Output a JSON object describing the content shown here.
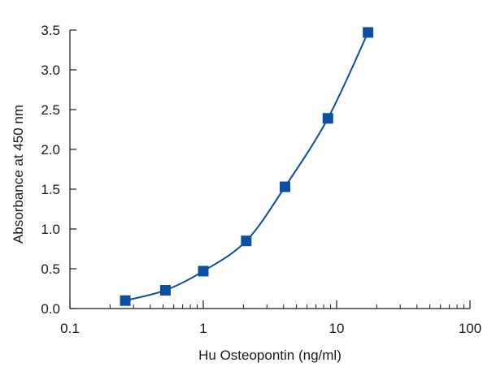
{
  "chart_data": {
    "type": "scatter",
    "title": "",
    "xlabel": "Hu Osteopontin (ng/ml)",
    "ylabel": "Absorbance at 450 nm",
    "x_scale": "log",
    "xlim": [
      0.1,
      100
    ],
    "ylim": [
      0,
      3.5
    ],
    "x_ticks": [
      {
        "value": 0.1,
        "label": "0.1"
      },
      {
        "value": 1,
        "label": "1"
      },
      {
        "value": 10,
        "label": "10"
      },
      {
        "value": 100,
        "label": "100"
      }
    ],
    "y_ticks": [
      {
        "value": 0,
        "label": "0.0"
      },
      {
        "value": 0.5,
        "label": "0.5"
      },
      {
        "value": 1,
        "label": "1.0"
      },
      {
        "value": 1.5,
        "label": "1.5"
      },
      {
        "value": 2,
        "label": "2.0"
      },
      {
        "value": 2.5,
        "label": "2.5"
      },
      {
        "value": 3,
        "label": "3.0"
      },
      {
        "value": 3.5,
        "label": "3.5"
      }
    ],
    "grid": false,
    "legend": "none",
    "series": [
      {
        "marker": "square",
        "color": "#0b4ea2",
        "fit_line": true,
        "points": [
          {
            "x": 0.26,
            "y": 0.1
          },
          {
            "x": 0.52,
            "y": 0.23
          },
          {
            "x": 1.0,
            "y": 0.47
          },
          {
            "x": 2.1,
            "y": 0.85
          },
          {
            "x": 4.1,
            "y": 1.53
          },
          {
            "x": 8.6,
            "y": 2.39
          },
          {
            "x": 17.2,
            "y": 3.47
          }
        ]
      }
    ]
  }
}
